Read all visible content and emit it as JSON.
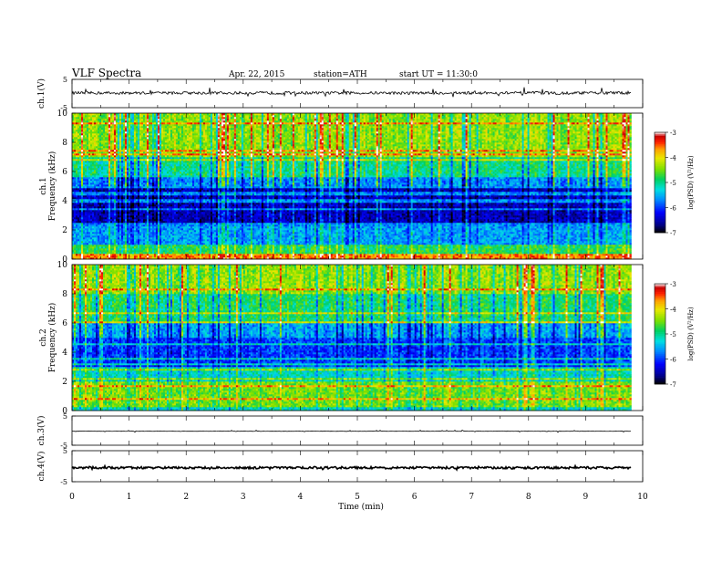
{
  "header": {
    "title": "VLF Spectra",
    "date": "Apr. 22, 2015",
    "station": "station=ATH",
    "start": "start UT = 11:30:0"
  },
  "chart_data": [
    {
      "type": "line",
      "panel": "ch1-waveform",
      "ylabel": "ch.1(V)",
      "ylim": [
        -5,
        5
      ],
      "yticks": [
        "5",
        "-5"
      ],
      "x_range_min": [
        0,
        9.8
      ],
      "series": [
        {
          "mean": 0.2,
          "noise": 0.5,
          "spike": 1.6
        }
      ]
    },
    {
      "type": "heatmap",
      "panel": "ch1-spectrogram",
      "ylabel": "ch.1\nFrequency (kHz)",
      "ylim": [
        0,
        10
      ],
      "yticks": [
        "0",
        "2",
        "4",
        "6",
        "8",
        "10"
      ],
      "x_range_min": [
        0,
        9.8
      ],
      "colorbar": {
        "label": "log(PSD) (V²/Hz)",
        "range": [
          -7,
          -3
        ],
        "ticks": [
          "-3",
          "-4",
          "-5",
          "-6",
          "-7"
        ]
      },
      "bands_khz": [
        {
          "f0": 0.0,
          "f1": 0.4,
          "logpsd": -3.6
        },
        {
          "f0": 0.4,
          "f1": 1.0,
          "logpsd": -4.8
        },
        {
          "f0": 1.0,
          "f1": 2.3,
          "logpsd": -5.6
        },
        {
          "f0": 2.3,
          "f1": 5.0,
          "logpsd": -6.5
        },
        {
          "f0": 5.0,
          "f1": 5.6,
          "logpsd": -5.7
        },
        {
          "f0": 5.6,
          "f1": 7.0,
          "logpsd": -5.0
        },
        {
          "f0": 7.0,
          "f1": 10.0,
          "logpsd": -4.4
        }
      ]
    },
    {
      "type": "heatmap",
      "panel": "ch2-spectrogram",
      "ylabel": "ch.2\nFrequency (kHz)",
      "ylim": [
        0,
        10
      ],
      "yticks": [
        "0",
        "2",
        "4",
        "6",
        "8",
        "10"
      ],
      "x_range_min": [
        0,
        9.8
      ],
      "colorbar": {
        "label": "log(PSD) (V²/Hz)",
        "range": [
          -7,
          -3
        ],
        "ticks": [
          "-3",
          "-4",
          "-5",
          "-6",
          "-7"
        ]
      },
      "bands_khz": [
        {
          "f0": 0.0,
          "f1": 0.3,
          "logpsd": -6.0
        },
        {
          "f0": 0.3,
          "f1": 2.0,
          "logpsd": -4.5
        },
        {
          "f0": 2.0,
          "f1": 3.0,
          "logpsd": -5.2
        },
        {
          "f0": 3.0,
          "f1": 5.0,
          "logpsd": -6.0
        },
        {
          "f0": 5.0,
          "f1": 6.0,
          "logpsd": -5.6
        },
        {
          "f0": 6.0,
          "f1": 8.0,
          "logpsd": -4.9
        },
        {
          "f0": 8.0,
          "f1": 10.0,
          "logpsd": -4.4
        }
      ]
    },
    {
      "type": "line",
      "panel": "ch3-waveform",
      "ylabel": "ch.3(V)",
      "ylim": [
        -5,
        5
      ],
      "yticks": [
        "5",
        "-5"
      ],
      "x_range_min": [
        0,
        9.8
      ],
      "series": [
        {
          "mean": -0.2,
          "noise": 0.05,
          "spike": 0.4
        }
      ]
    },
    {
      "type": "line",
      "panel": "ch4-waveform",
      "ylabel": "ch.4(V)",
      "ylim": [
        -5,
        5
      ],
      "yticks": [
        "5",
        "-5"
      ],
      "x_range_min": [
        0,
        9.8
      ],
      "series": [
        {
          "mean": -0.5,
          "noise": 0.35,
          "spike": 0.4
        }
      ]
    }
  ],
  "xaxis": {
    "label": "Time (min)",
    "range": [
      0,
      10
    ],
    "ticks": [
      "0",
      "1",
      "2",
      "3",
      "4",
      "5",
      "6",
      "7",
      "8",
      "9",
      "10"
    ]
  },
  "colors": {
    "colormap": [
      "#000000",
      "#00008b",
      "#0000ff",
      "#0090ff",
      "#00e0e0",
      "#00d060",
      "#7be000",
      "#e8e800",
      "#ffa000",
      "#ff2000",
      "#c80000",
      "#ffffff"
    ]
  }
}
